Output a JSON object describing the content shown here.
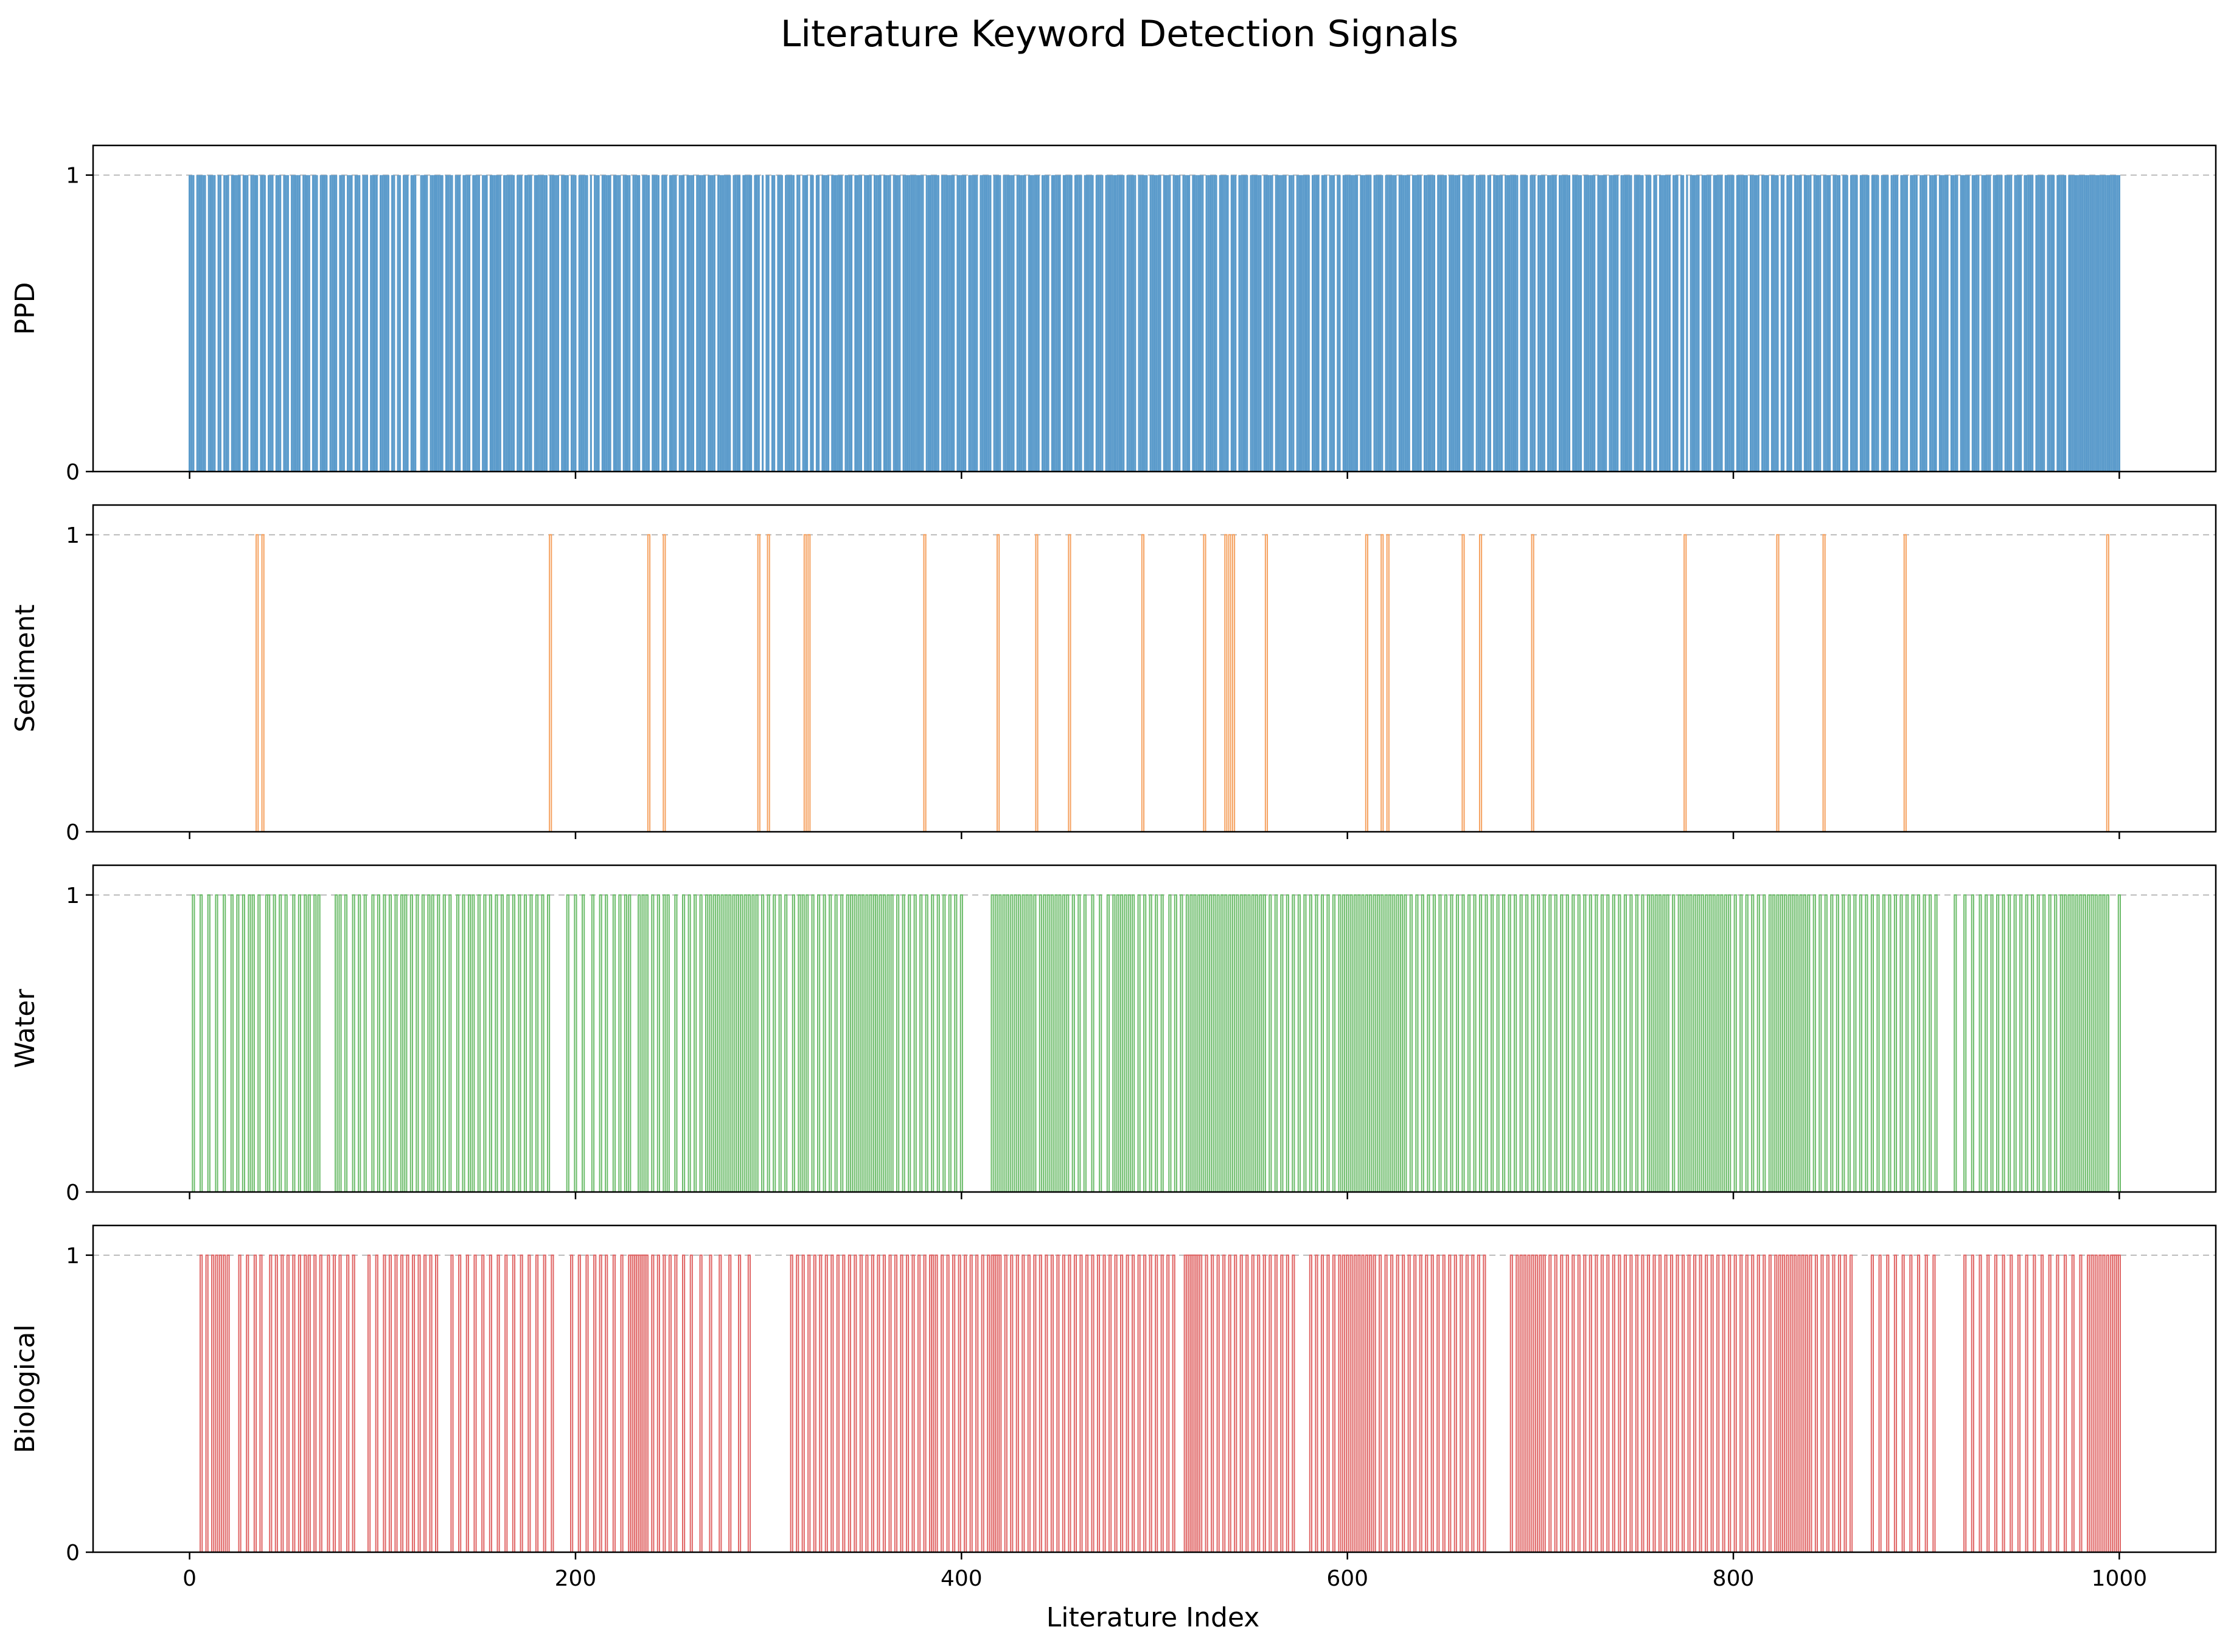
{
  "chart_data": {
    "type": "bar",
    "title": "Literature Keyword Detection Signals",
    "xlabel": "Literature Index",
    "xlim": [
      -50,
      1050
    ],
    "xticks": [
      0,
      200,
      400,
      600,
      800,
      1000
    ],
    "xtick_labels": [
      "0",
      "200",
      "400",
      "600",
      "800",
      "1000"
    ],
    "n_items": 1001,
    "grid": "dashed horizontal reference line at y = 1",
    "sharex": true,
    "panels": [
      {
        "name": "PPD",
        "ylabel": "PPD",
        "color": "#5b9bcb",
        "ylim": [
          0,
          1.1
        ],
        "yticks": [
          0,
          1
        ],
        "ytick_labels": [
          "0",
          "1"
        ],
        "value_is_one_everywhere_except": [
          3,
          9,
          14,
          17,
          21,
          27,
          31,
          36,
          40,
          44,
          48,
          52,
          58,
          63,
          67,
          72,
          77,
          81,
          85,
          89,
          93,
          98,
          104,
          107,
          110,
          114,
          118,
          119,
          124,
          132,
          137,
          141,
          146,
          151,
          155,
          162,
          169,
          173,
          178,
          186,
          192,
          197,
          201,
          207,
          209,
          213,
          219,
          224,
          229,
          234,
          239,
          244,
          248,
          253,
          257,
          262,
          268,
          273,
          281,
          286,
          292,
          296,
          298,
          301,
          304,
          308,
          314,
          317,
          321,
          324,
          327,
          332,
          339,
          344,
          349,
          354,
          359,
          364,
          369,
          381,
          389,
          397,
          403,
          409,
          416,
          421,
          428,
          434,
          441,
          446,
          452,
          458,
          463,
          469,
          474,
          485,
          491,
          497,
          504,
          509,
          514,
          519,
          526,
          533,
          539,
          543,
          549,
          556,
          562,
          569,
          573,
          581,
          586,
          590,
          594,
          597,
          606,
          613,
          619,
          626,
          633,
          639,
          646,
          652,
          659,
          666,
          672,
          675,
          681,
          689,
          694,
          698,
          703,
          709,
          716,
          722,
          729,
          735,
          741,
          748,
          754,
          758,
          761,
          768,
          772,
          775,
          777,
          783,
          789,
          795,
          801,
          808,
          814,
          819,
          824,
          827,
          831,
          836,
          841,
          846,
          851,
          856,
          860,
          865,
          871,
          876,
          881,
          886,
          891,
          896,
          901,
          906,
          912,
          917,
          923,
          928,
          934,
          940,
          945,
          950,
          956,
          962,
          967,
          973
        ]
      },
      {
        "name": "Sediment",
        "ylabel": "Sediment",
        "color": "#f5a261",
        "ylim": [
          0,
          1.1
        ],
        "yticks": [
          0,
          1
        ],
        "ytick_labels": [
          "0",
          "1"
        ],
        "value_is_one_only_at": [
          35,
          38,
          187,
          238,
          246,
          295,
          300,
          319,
          321,
          381,
          419,
          439,
          456,
          494,
          526,
          537,
          539,
          541,
          558,
          610,
          618,
          621,
          660,
          669,
          696,
          775,
          823,
          847,
          889,
          994
        ]
      },
      {
        "name": "Water",
        "ylabel": "Water",
        "color": "#6cbc6a",
        "ylim": [
          0,
          1.1
        ],
        "yticks": [
          0,
          1
        ],
        "ytick_labels": [
          "0",
          "1"
        ],
        "value_is_one_only_at": [
          2,
          6,
          10,
          14,
          18,
          22,
          25,
          28,
          31,
          33,
          36,
          40,
          41,
          44,
          47,
          50,
          54,
          57,
          60,
          62,
          65,
          67,
          76,
          78,
          81,
          85,
          88,
          91,
          95,
          98,
          101,
          104,
          107,
          110,
          112,
          115,
          118,
          121,
          124,
          126,
          129,
          132,
          135,
          139,
          142,
          145,
          147,
          150,
          153,
          156,
          159,
          162,
          165,
          168,
          171,
          174,
          177,
          180,
          183,
          186,
          196,
          200,
          204,
          209,
          213,
          216,
          220,
          223,
          226,
          228,
          233,
          235,
          237,
          240,
          243,
          246,
          248,
          252,
          256,
          259,
          262,
          265,
          268,
          270,
          272,
          274,
          276,
          278,
          280,
          282,
          284,
          286,
          288,
          290,
          292,
          294,
          297,
          300,
          303,
          306,
          309,
          313,
          316,
          318,
          320,
          323,
          326,
          329,
          332,
          335,
          338,
          341,
          343,
          345,
          347,
          349,
          351,
          353,
          355,
          356,
          358,
          360,
          362,
          364,
          367,
          370,
          373,
          376,
          379,
          382,
          385,
          388,
          391,
          394,
          397,
          400,
          416,
          418,
          420,
          422,
          424,
          426,
          428,
          430,
          432,
          434,
          436,
          438,
          441,
          443,
          445,
          447,
          449,
          451,
          453,
          455,
          458,
          461,
          464,
          468,
          472,
          476,
          479,
          481,
          483,
          485,
          487,
          489,
          492,
          495,
          498,
          501,
          504,
          508,
          511,
          514,
          517,
          519,
          521,
          523,
          525,
          527,
          529,
          531,
          533,
          535,
          537,
          539,
          541,
          543,
          545,
          547,
          549,
          551,
          553,
          555,
          557,
          560,
          563,
          566,
          569,
          572,
          575,
          578,
          581,
          584,
          587,
          590,
          593,
          596,
          598,
          600,
          602,
          604,
          606,
          608,
          610,
          612,
          614,
          616,
          618,
          620,
          622,
          624,
          626,
          628,
          630,
          633,
          636,
          639,
          642,
          645,
          648,
          651,
          654,
          657,
          660,
          663,
          666,
          669,
          672,
          675,
          678,
          681,
          684,
          687,
          690,
          693,
          696,
          699,
          702,
          705,
          708,
          711,
          714,
          717,
          720,
          723,
          726,
          729,
          732,
          735,
          738,
          741,
          744,
          747,
          750,
          753,
          756,
          758,
          760,
          762,
          764,
          766,
          769,
          772,
          774,
          776,
          778,
          780,
          782,
          784,
          786,
          788,
          790,
          792,
          794,
          796,
          798,
          801,
          804,
          807,
          810,
          813,
          816,
          819,
          821,
          823,
          825,
          827,
          829,
          831,
          833,
          835,
          837,
          839,
          842,
          845,
          848,
          851,
          854,
          857,
          860,
          863,
          866,
          869,
          872,
          875,
          878,
          881,
          884,
          887,
          890,
          893,
          896,
          899,
          902,
          905,
          915,
          920,
          924,
          928,
          931,
          934,
          937,
          940,
          943,
          946,
          949,
          952,
          955,
          958,
          961,
          964,
          967,
          970,
          972,
          974,
          976,
          978,
          980,
          982,
          984,
          986,
          988,
          990,
          992,
          994,
          1000
        ]
      },
      {
        "name": "Biological",
        "ylabel": "Biological",
        "color": "#e06666",
        "ylim": [
          0,
          1.1
        ],
        "yticks": [
          0,
          1
        ],
        "ytick_labels": [
          "0",
          "1"
        ],
        "value_is_one_only_at": [
          6,
          9,
          12,
          14,
          16,
          18,
          20,
          26,
          30,
          34,
          37,
          42,
          45,
          48,
          51,
          54,
          57,
          60,
          62,
          65,
          68,
          72,
          75,
          78,
          82,
          85,
          93,
          97,
          101,
          104,
          107,
          110,
          113,
          116,
          119,
          122,
          125,
          128,
          136,
          140,
          144,
          148,
          152,
          156,
          160,
          164,
          168,
          172,
          176,
          180,
          184,
          188,
          198,
          202,
          206,
          210,
          213,
          216,
          220,
          224,
          228,
          229,
          230,
          231,
          232,
          233,
          234,
          235,
          236,
          237,
          240,
          243,
          246,
          249,
          252,
          256,
          260,
          265,
          270,
          275,
          280,
          285,
          290,
          312,
          315,
          318,
          321,
          324,
          327,
          330,
          333,
          336,
          339,
          342,
          345,
          348,
          351,
          354,
          357,
          360,
          363,
          366,
          369,
          372,
          375,
          378,
          381,
          384,
          385,
          387,
          390,
          393,
          396,
          399,
          402,
          405,
          408,
          411,
          414,
          416,
          417,
          418,
          419,
          420,
          423,
          426,
          429,
          432,
          435,
          438,
          441,
          444,
          447,
          450,
          453,
          456,
          459,
          462,
          465,
          468,
          471,
          474,
          477,
          480,
          483,
          486,
          489,
          492,
          495,
          498,
          501,
          504,
          507,
          510,
          516,
          517,
          518,
          519,
          520,
          521,
          522,
          523,
          524,
          527,
          530,
          533,
          536,
          539,
          542,
          545,
          548,
          551,
          554,
          557,
          560,
          563,
          566,
          569,
          572,
          581,
          584,
          587,
          590,
          593,
          596,
          598,
          600,
          602,
          604,
          606,
          608,
          610,
          612,
          614,
          617,
          620,
          623,
          626,
          629,
          632,
          635,
          638,
          641,
          644,
          647,
          650,
          653,
          656,
          659,
          662,
          665,
          668,
          671,
          685,
          688,
          690,
          692,
          694,
          696,
          698,
          700,
          702,
          705,
          708,
          711,
          714,
          717,
          720,
          723,
          726,
          729,
          732,
          735,
          738,
          741,
          744,
          747,
          750,
          753,
          756,
          759,
          762,
          765,
          768,
          771,
          774,
          777,
          780,
          783,
          786,
          789,
          792,
          795,
          798,
          801,
          804,
          807,
          810,
          813,
          816,
          819,
          822,
          824,
          826,
          828,
          830,
          832,
          834,
          836,
          838,
          840,
          843,
          846,
          849,
          852,
          855,
          858,
          861,
          872,
          876,
          880,
          884,
          888,
          892,
          896,
          900,
          904,
          920,
          924,
          928,
          932,
          936,
          940,
          944,
          948,
          952,
          956,
          960,
          964,
          968,
          972,
          976,
          980,
          984,
          986,
          988,
          990,
          992,
          994,
          996,
          997,
          998,
          999,
          1000
        ]
      }
    ]
  }
}
